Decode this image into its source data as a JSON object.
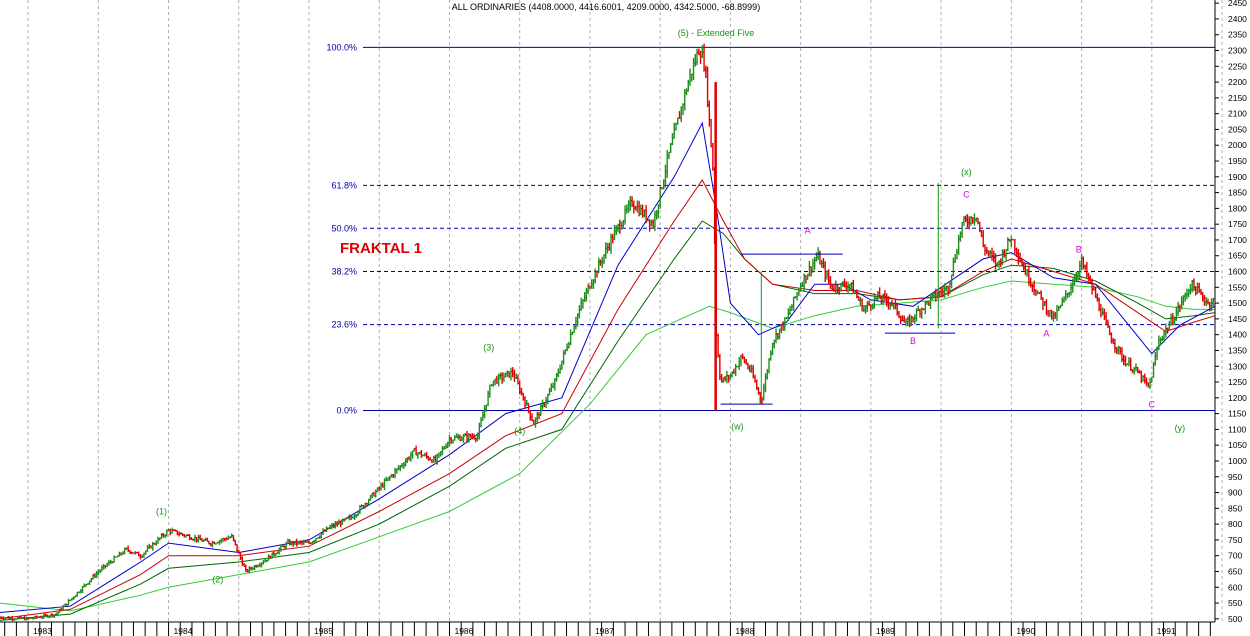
{
  "header": {
    "title": "ALL ORDINARIES (4408.0000, 4416.6001, 4209.0000, 4342.5000, -68.8999)",
    "subtitle": "(5) - Extended Five",
    "fraktal_label": "FRAKTAL 1"
  },
  "colors": {
    "up": "#1e8c1e",
    "down": "#e00000",
    "ma_fast": "#0000cc",
    "ma_mid": "#cc0000",
    "ma_slow": "#006600",
    "ma_long": "#33cc33",
    "fib": "#0000aa",
    "wave_green": "#119911",
    "wave_magenta": "#dd00dd",
    "grid": "#b0b0b0"
  },
  "chart_data": {
    "type": "candlestick",
    "ylim": [
      490,
      2460
    ],
    "yticks": [
      500,
      550,
      600,
      650,
      700,
      750,
      800,
      850,
      900,
      950,
      1000,
      1050,
      1100,
      1150,
      1200,
      1250,
      1300,
      1350,
      1400,
      1450,
      1500,
      1550,
      1600,
      1650,
      1700,
      1750,
      1800,
      1850,
      1900,
      1950,
      2000,
      2050,
      2100,
      2150,
      2200,
      2250,
      2300,
      2350,
      2400,
      2450
    ],
    "xlim": [
      1982.8,
      1991.45
    ],
    "years": [
      {
        "label": "1983",
        "x": 1983.0
      },
      {
        "label": "1984",
        "x": 1984.0
      },
      {
        "label": "1985",
        "x": 1985.0
      },
      {
        "label": "1986",
        "x": 1986.0
      },
      {
        "label": "1987",
        "x": 1987.0
      },
      {
        "label": "1988",
        "x": 1988.0
      },
      {
        "label": "1989",
        "x": 1989.0
      },
      {
        "label": "1990",
        "x": 1990.0
      },
      {
        "label": "1991",
        "x": 1991.0
      }
    ],
    "price_path": [
      [
        1982.8,
        505
      ],
      [
        1983.0,
        500
      ],
      [
        1983.2,
        515
      ],
      [
        1983.3,
        560
      ],
      [
        1983.5,
        650
      ],
      [
        1983.7,
        720
      ],
      [
        1983.8,
        700
      ],
      [
        1984.0,
        780
      ],
      [
        1984.15,
        760
      ],
      [
        1984.3,
        740
      ],
      [
        1984.45,
        760
      ],
      [
        1984.55,
        650
      ],
      [
        1984.7,
        690
      ],
      [
        1984.85,
        740
      ],
      [
        1985.0,
        740
      ],
      [
        1985.15,
        790
      ],
      [
        1985.3,
        820
      ],
      [
        1985.45,
        890
      ],
      [
        1985.6,
        960
      ],
      [
        1985.75,
        1030
      ],
      [
        1985.9,
        1000
      ],
      [
        1986.0,
        1070
      ],
      [
        1986.2,
        1080
      ],
      [
        1986.3,
        1250
      ],
      [
        1986.45,
        1280
      ],
      [
        1986.6,
        1120
      ],
      [
        1986.75,
        1250
      ],
      [
        1986.9,
        1450
      ],
      [
        1987.0,
        1560
      ],
      [
        1987.15,
        1700
      ],
      [
        1987.3,
        1820
      ],
      [
        1987.45,
        1750
      ],
      [
        1987.55,
        1950
      ],
      [
        1987.7,
        2200
      ],
      [
        1987.78,
        2310
      ],
      [
        1987.82,
        2250
      ],
      [
        1987.88,
        1900
      ],
      [
        1987.9,
        1400
      ],
      [
        1987.93,
        1250
      ],
      [
        1988.0,
        1270
      ],
      [
        1988.08,
        1330
      ],
      [
        1988.15,
        1280
      ],
      [
        1988.22,
        1190
      ],
      [
        1988.3,
        1380
      ],
      [
        1988.4,
        1450
      ],
      [
        1988.5,
        1560
      ],
      [
        1988.62,
        1650
      ],
      [
        1988.72,
        1550
      ],
      [
        1988.85,
        1560
      ],
      [
        1988.95,
        1480
      ],
      [
        1989.05,
        1520
      ],
      [
        1989.15,
        1500
      ],
      [
        1989.25,
        1430
      ],
      [
        1989.35,
        1480
      ],
      [
        1989.45,
        1520
      ],
      [
        1989.55,
        1550
      ],
      [
        1989.65,
        1750
      ],
      [
        1989.75,
        1780
      ],
      [
        1989.8,
        1680
      ],
      [
        1989.9,
        1620
      ],
      [
        1990.0,
        1710
      ],
      [
        1990.1,
        1600
      ],
      [
        1990.2,
        1520
      ],
      [
        1990.3,
        1450
      ],
      [
        1990.4,
        1530
      ],
      [
        1990.5,
        1630
      ],
      [
        1990.6,
        1520
      ],
      [
        1990.7,
        1400
      ],
      [
        1990.8,
        1320
      ],
      [
        1990.9,
        1280
      ],
      [
        1990.98,
        1230
      ],
      [
        1991.05,
        1380
      ],
      [
        1991.15,
        1450
      ],
      [
        1991.28,
        1560
      ],
      [
        1991.4,
        1500
      ],
      [
        1991.45,
        1510
      ]
    ],
    "ma_fast_path": [
      [
        1982.8,
        520
      ],
      [
        1983.3,
        540
      ],
      [
        1983.8,
        680
      ],
      [
        1984.0,
        740
      ],
      [
        1984.5,
        710
      ],
      [
        1985.0,
        750
      ],
      [
        1985.5,
        880
      ],
      [
        1986.0,
        1020
      ],
      [
        1986.4,
        1150
      ],
      [
        1986.8,
        1200
      ],
      [
        1987.2,
        1620
      ],
      [
        1987.6,
        1900
      ],
      [
        1987.8,
        2070
      ],
      [
        1987.9,
        1800
      ],
      [
        1988.0,
        1500
      ],
      [
        1988.2,
        1400
      ],
      [
        1988.4,
        1440
      ],
      [
        1988.6,
        1560
      ],
      [
        1988.8,
        1560
      ],
      [
        1989.0,
        1510
      ],
      [
        1989.3,
        1490
      ],
      [
        1989.6,
        1580
      ],
      [
        1989.8,
        1640
      ],
      [
        1990.0,
        1660
      ],
      [
        1990.3,
        1580
      ],
      [
        1990.6,
        1560
      ],
      [
        1990.8,
        1450
      ],
      [
        1991.0,
        1340
      ],
      [
        1991.2,
        1430
      ],
      [
        1991.45,
        1490
      ]
    ],
    "ma_mid_path": [
      [
        1982.8,
        500
      ],
      [
        1983.3,
        530
      ],
      [
        1983.8,
        640
      ],
      [
        1984.0,
        700
      ],
      [
        1984.5,
        700
      ],
      [
        1985.0,
        730
      ],
      [
        1985.5,
        840
      ],
      [
        1986.0,
        960
      ],
      [
        1986.4,
        1080
      ],
      [
        1986.8,
        1150
      ],
      [
        1987.2,
        1480
      ],
      [
        1987.6,
        1760
      ],
      [
        1987.8,
        1890
      ],
      [
        1987.95,
        1760
      ],
      [
        1988.1,
        1640
      ],
      [
        1988.3,
        1560
      ],
      [
        1988.6,
        1540
      ],
      [
        1988.9,
        1540
      ],
      [
        1989.2,
        1510
      ],
      [
        1989.5,
        1520
      ],
      [
        1989.8,
        1600
      ],
      [
        1990.0,
        1640
      ],
      [
        1990.3,
        1600
      ],
      [
        1990.6,
        1560
      ],
      [
        1990.9,
        1470
      ],
      [
        1991.1,
        1410
      ],
      [
        1991.3,
        1440
      ],
      [
        1991.45,
        1460
      ]
    ],
    "ma_slow_path": [
      [
        1982.8,
        495
      ],
      [
        1983.3,
        515
      ],
      [
        1983.8,
        610
      ],
      [
        1984.0,
        660
      ],
      [
        1984.5,
        680
      ],
      [
        1985.0,
        710
      ],
      [
        1985.5,
        800
      ],
      [
        1986.0,
        920
      ],
      [
        1986.4,
        1040
      ],
      [
        1986.8,
        1100
      ],
      [
        1987.2,
        1380
      ],
      [
        1987.6,
        1640
      ],
      [
        1987.8,
        1760
      ],
      [
        1987.95,
        1720
      ],
      [
        1988.1,
        1640
      ],
      [
        1988.3,
        1560
      ],
      [
        1988.6,
        1530
      ],
      [
        1988.9,
        1530
      ],
      [
        1989.2,
        1510
      ],
      [
        1989.5,
        1520
      ],
      [
        1989.8,
        1590
      ],
      [
        1990.0,
        1620
      ],
      [
        1990.3,
        1610
      ],
      [
        1990.6,
        1570
      ],
      [
        1990.9,
        1500
      ],
      [
        1991.1,
        1450
      ],
      [
        1991.3,
        1460
      ],
      [
        1991.45,
        1470
      ]
    ],
    "ma_long_path": [
      [
        1982.8,
        550
      ],
      [
        1983.3,
        525
      ],
      [
        1983.8,
        575
      ],
      [
        1984.0,
        600
      ],
      [
        1984.5,
        640
      ],
      [
        1985.0,
        680
      ],
      [
        1985.5,
        760
      ],
      [
        1986.0,
        840
      ],
      [
        1986.5,
        960
      ],
      [
        1987.0,
        1180
      ],
      [
        1987.4,
        1400
      ],
      [
        1987.7,
        1460
      ],
      [
        1987.85,
        1490
      ],
      [
        1988.0,
        1470
      ],
      [
        1988.3,
        1420
      ],
      [
        1988.6,
        1460
      ],
      [
        1988.9,
        1490
      ],
      [
        1989.2,
        1500
      ],
      [
        1989.5,
        1510
      ],
      [
        1989.8,
        1550
      ],
      [
        1990.0,
        1570
      ],
      [
        1990.3,
        1560
      ],
      [
        1990.6,
        1550
      ],
      [
        1990.9,
        1520
      ],
      [
        1991.1,
        1490
      ],
      [
        1991.3,
        1480
      ],
      [
        1991.45,
        1480
      ]
    ],
    "fib_levels": [
      {
        "label": "100.0%",
        "value": 2310,
        "style": "solid"
      },
      {
        "label": "61.8%",
        "value": 1873,
        "style": "dashed"
      },
      {
        "label": "50.0%",
        "value": 1737,
        "style": "dashed"
      },
      {
        "label": "38.2%",
        "value": 1600,
        "style": "dashed"
      },
      {
        "label": "23.6%",
        "value": 1432,
        "style": "dashed"
      },
      {
        "label": "0.0%",
        "value": 1160,
        "style": "solid"
      }
    ],
    "wave_labels": [
      {
        "text": "(1)",
        "x": 1983.95,
        "y": 830,
        "color": "green"
      },
      {
        "text": "(2)",
        "x": 1984.35,
        "y": 615,
        "color": "green"
      },
      {
        "text": "(3)",
        "x": 1986.28,
        "y": 1350,
        "color": "green"
      },
      {
        "text": "(4)",
        "x": 1986.5,
        "y": 1085,
        "color": "green"
      },
      {
        "text": "(w)",
        "x": 1988.05,
        "y": 1100,
        "color": "green"
      },
      {
        "text": "(x)",
        "x": 1989.68,
        "y": 1905,
        "color": "green"
      },
      {
        "text": "(y)",
        "x": 1991.2,
        "y": 1095,
        "color": "green"
      },
      {
        "text": "A",
        "x": 1988.55,
        "y": 1720,
        "color": "magenta"
      },
      {
        "text": "B",
        "x": 1989.3,
        "y": 1370,
        "color": "magenta"
      },
      {
        "text": "C",
        "x": 1989.68,
        "y": 1835,
        "color": "magenta"
      },
      {
        "text": "A",
        "x": 1990.25,
        "y": 1395,
        "color": "magenta"
      },
      {
        "text": "B",
        "x": 1990.48,
        "y": 1660,
        "color": "magenta"
      },
      {
        "text": "C",
        "x": 1991.0,
        "y": 1170,
        "color": "magenta"
      }
    ],
    "guide_lines": [
      {
        "x1": 1987.93,
        "y1": 1180,
        "x2": 1988.3,
        "y2": 1180,
        "color": "fib"
      },
      {
        "x1": 1988.08,
        "y1": 1655,
        "x2": 1988.8,
        "y2": 1655,
        "color": "fib"
      },
      {
        "x1": 1989.1,
        "y1": 1405,
        "x2": 1989.6,
        "y2": 1405,
        "color": "fib"
      },
      {
        "x1": 1988.22,
        "y1": 1180,
        "x2": 1988.22,
        "y2": 1600,
        "color": "wave_green"
      },
      {
        "x1": 1989.48,
        "y1": 1420,
        "x2": 1989.48,
        "y2": 1880,
        "color": "wave_green"
      }
    ]
  }
}
